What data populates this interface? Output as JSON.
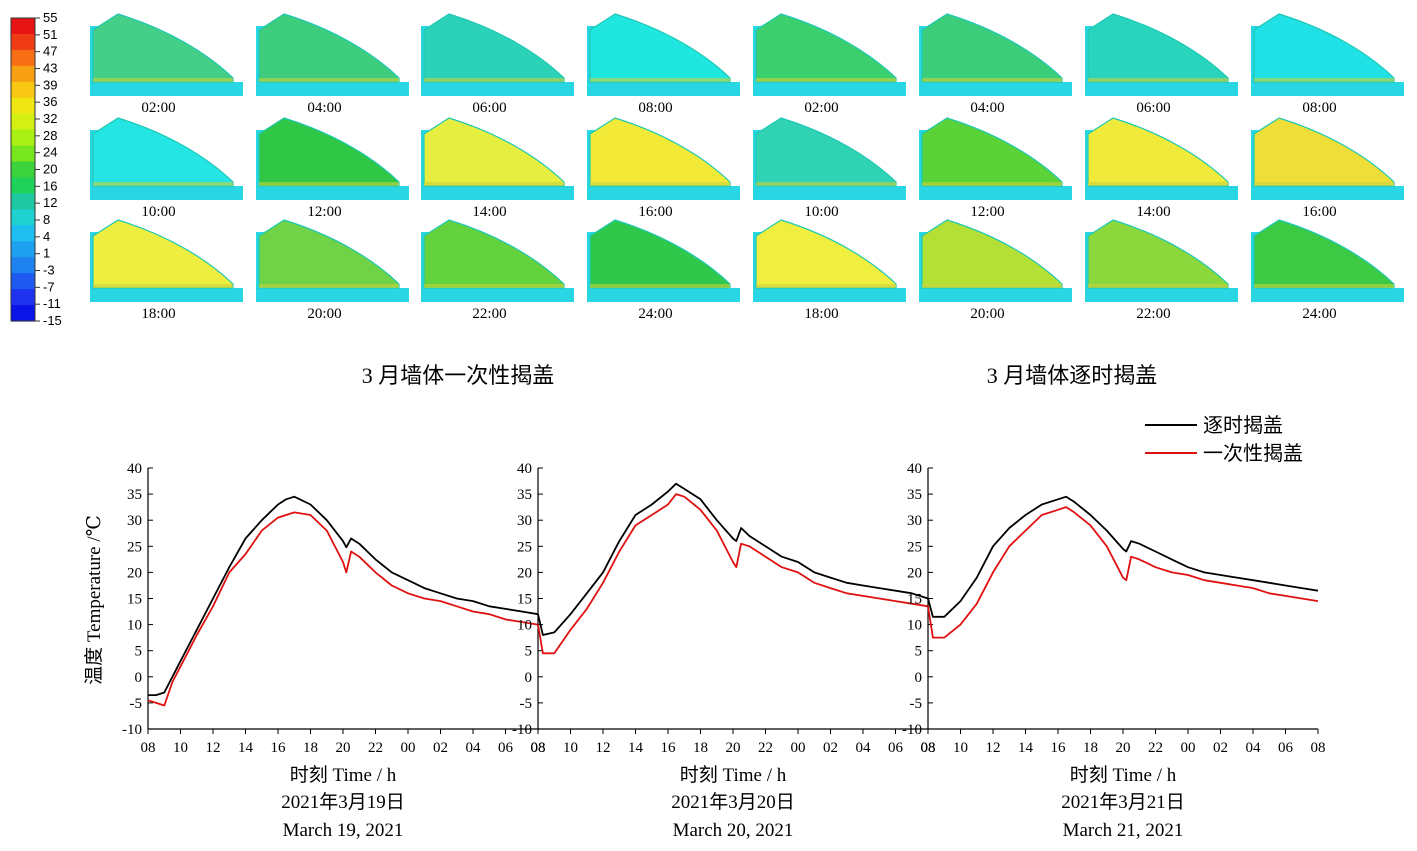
{
  "colorbar": {
    "ticks": [
      "55",
      "51",
      "47",
      "43",
      "39",
      "36",
      "32",
      "28",
      "24",
      "20",
      "16",
      "12",
      "8",
      "4",
      "1",
      "-3",
      "-7",
      "-11",
      "-15"
    ],
    "colors": [
      "#e61414",
      "#f03c14",
      "#f86e14",
      "#f8a014",
      "#f8c814",
      "#f0e614",
      "#d2f014",
      "#aaf014",
      "#78e61e",
      "#3cd23c",
      "#1ed25a",
      "#1ec8a0",
      "#1ed2d2",
      "#1ebef0",
      "#1ea0f0",
      "#1e82f0",
      "#1e5af0",
      "#1e32f0",
      "#0a14e6"
    ]
  },
  "sections": {
    "left_title": "3 月墙体一次性揭盖",
    "right_title": "3 月墙体逐时揭盖"
  },
  "snapshots": [
    {
      "time": "02:00",
      "color": "#44cf88"
    },
    {
      "time": "04:00",
      "color": "#3ecd7c"
    },
    {
      "time": "06:00",
      "color": "#2cd2b8"
    },
    {
      "time": "08:00",
      "color": "#20e6e0"
    },
    {
      "time": "02:00",
      "color": "#3ccf6e"
    },
    {
      "time": "04:00",
      "color": "#3ccd7a"
    },
    {
      "time": "06:00",
      "color": "#28d4bc"
    },
    {
      "time": "08:00",
      "color": "#20e2e6"
    },
    {
      "time": "10:00",
      "color": "#24e4e4"
    },
    {
      "time": "12:00",
      "color": "#30c646"
    },
    {
      "time": "14:00",
      "color": "#e6ee40"
    },
    {
      "time": "16:00",
      "color": "#f2ea36"
    },
    {
      "time": "10:00",
      "color": "#30d2b4"
    },
    {
      "time": "12:00",
      "color": "#5ad238"
    },
    {
      "time": "14:00",
      "color": "#f0ea3a"
    },
    {
      "time": "16:00",
      "color": "#f0de38"
    },
    {
      "time": "18:00",
      "color": "#eeee40"
    },
    {
      "time": "20:00",
      "color": "#70d246"
    },
    {
      "time": "22:00",
      "color": "#64d23c"
    },
    {
      "time": "24:00",
      "color": "#30c84a"
    },
    {
      "time": "18:00",
      "color": "#f0ee3e"
    },
    {
      "time": "20:00",
      "color": "#b4e036"
    },
    {
      "time": "22:00",
      "color": "#8cd83c"
    },
    {
      "time": "24:00",
      "color": "#3cca44"
    }
  ],
  "chart_data": {
    "type": "line",
    "ylabel": "温度 Temperature /℃",
    "ylim": [
      -10,
      40
    ],
    "yticks": [
      -10,
      -5,
      0,
      5,
      10,
      15,
      20,
      25,
      30,
      35,
      40
    ],
    "legend": {
      "placement": "top-right"
    },
    "series": [
      {
        "name": "逐时揭盖",
        "color": "#000000"
      },
      {
        "name": "一次性揭盖",
        "color": "#e01010"
      }
    ],
    "panels": [
      {
        "xlabel": "时刻 Time / h",
        "date_cn": "2021年3月19日",
        "date_en": "March 19, 2021",
        "xticks": [
          "08",
          "10",
          "12",
          "14",
          "16",
          "18",
          "20",
          "22",
          "00",
          "02",
          "04",
          "06",
          "08"
        ],
        "x_hours": [
          0,
          0.5,
          1,
          1.5,
          2,
          3,
          4,
          5,
          6,
          7,
          8,
          8.5,
          9,
          10,
          11,
          12,
          12.2,
          12.5,
          13,
          14,
          15,
          16,
          17,
          18,
          19,
          20,
          21,
          22,
          23,
          24
        ],
        "values": {
          "逐时揭盖": [
            -3.5,
            -3.5,
            -3.0,
            0,
            3,
            9,
            15,
            21,
            26.5,
            30,
            33,
            34,
            34.5,
            33,
            30,
            26,
            24.8,
            26.5,
            25.5,
            22.5,
            20,
            18.5,
            17,
            16,
            15,
            14.5,
            13.5,
            13,
            12.5,
            12
          ],
          "一次性揭盖": [
            -4.5,
            -5,
            -5.5,
            -1,
            2,
            8,
            13.5,
            20,
            23.5,
            28,
            30.5,
            31,
            31.5,
            31,
            28,
            22,
            20,
            24,
            23,
            20,
            17.5,
            16,
            15,
            14.5,
            13.5,
            12.5,
            12,
            11,
            10.5,
            10
          ]
        }
      },
      {
        "xlabel": "时刻 Time / h",
        "date_cn": "2021年3月20日",
        "date_en": "March 20, 2021",
        "xticks": [
          "08",
          "10",
          "12",
          "14",
          "16",
          "18",
          "20",
          "22",
          "00",
          "02",
          "04",
          "06",
          "08"
        ],
        "x_hours": [
          0,
          0.3,
          1,
          2,
          3,
          4,
          5,
          6,
          7,
          8,
          8.5,
          9,
          10,
          11,
          12,
          12.2,
          12.5,
          13,
          14,
          15,
          16,
          17,
          18,
          19,
          20,
          21,
          22,
          23,
          24
        ],
        "values": {
          "逐时揭盖": [
            12,
            8,
            8.5,
            12,
            16,
            20,
            26,
            31,
            33,
            35.5,
            37,
            36,
            34,
            30,
            26.5,
            26,
            28.5,
            27,
            25,
            23,
            22,
            20,
            19,
            18,
            17.5,
            17,
            16.5,
            16,
            15
          ],
          "一次性揭盖": [
            10,
            4.5,
            4.5,
            9,
            13,
            18,
            24,
            29,
            31,
            33,
            35,
            34.5,
            32,
            28,
            22,
            21,
            25.5,
            25,
            23,
            21,
            20,
            18,
            17,
            16,
            15.5,
            15,
            14.5,
            14,
            13.5
          ]
        }
      },
      {
        "xlabel": "时刻 Time / h",
        "date_cn": "2021年3月21日",
        "date_en": "March 21, 2021",
        "xticks": [
          "08",
          "10",
          "12",
          "14",
          "16",
          "18",
          "20",
          "22",
          "00",
          "02",
          "04",
          "06",
          "08"
        ],
        "x_hours": [
          0,
          0.3,
          1,
          2,
          3,
          4,
          5,
          6,
          7,
          8,
          8.5,
          9,
          10,
          11,
          12,
          12.2,
          12.5,
          13,
          14,
          15,
          16,
          17,
          18,
          19,
          20,
          21,
          22,
          23,
          24
        ],
        "values": {
          "逐时揭盖": [
            15,
            11.5,
            11.5,
            14.5,
            19,
            25,
            28.5,
            31,
            33,
            34,
            34.5,
            33.5,
            31,
            28,
            24.5,
            24,
            26,
            25.5,
            24,
            22.5,
            21,
            20,
            19.5,
            19,
            18.5,
            18,
            17.5,
            17,
            16.5
          ],
          "一次性揭盖": [
            13.5,
            7.5,
            7.5,
            10,
            14,
            20,
            25,
            28,
            31,
            32,
            32.5,
            31.5,
            29,
            25,
            19,
            18.5,
            23,
            22.5,
            21,
            20,
            19.5,
            18.5,
            18,
            17.5,
            17,
            16,
            15.5,
            15,
            14.5
          ]
        }
      }
    ]
  }
}
